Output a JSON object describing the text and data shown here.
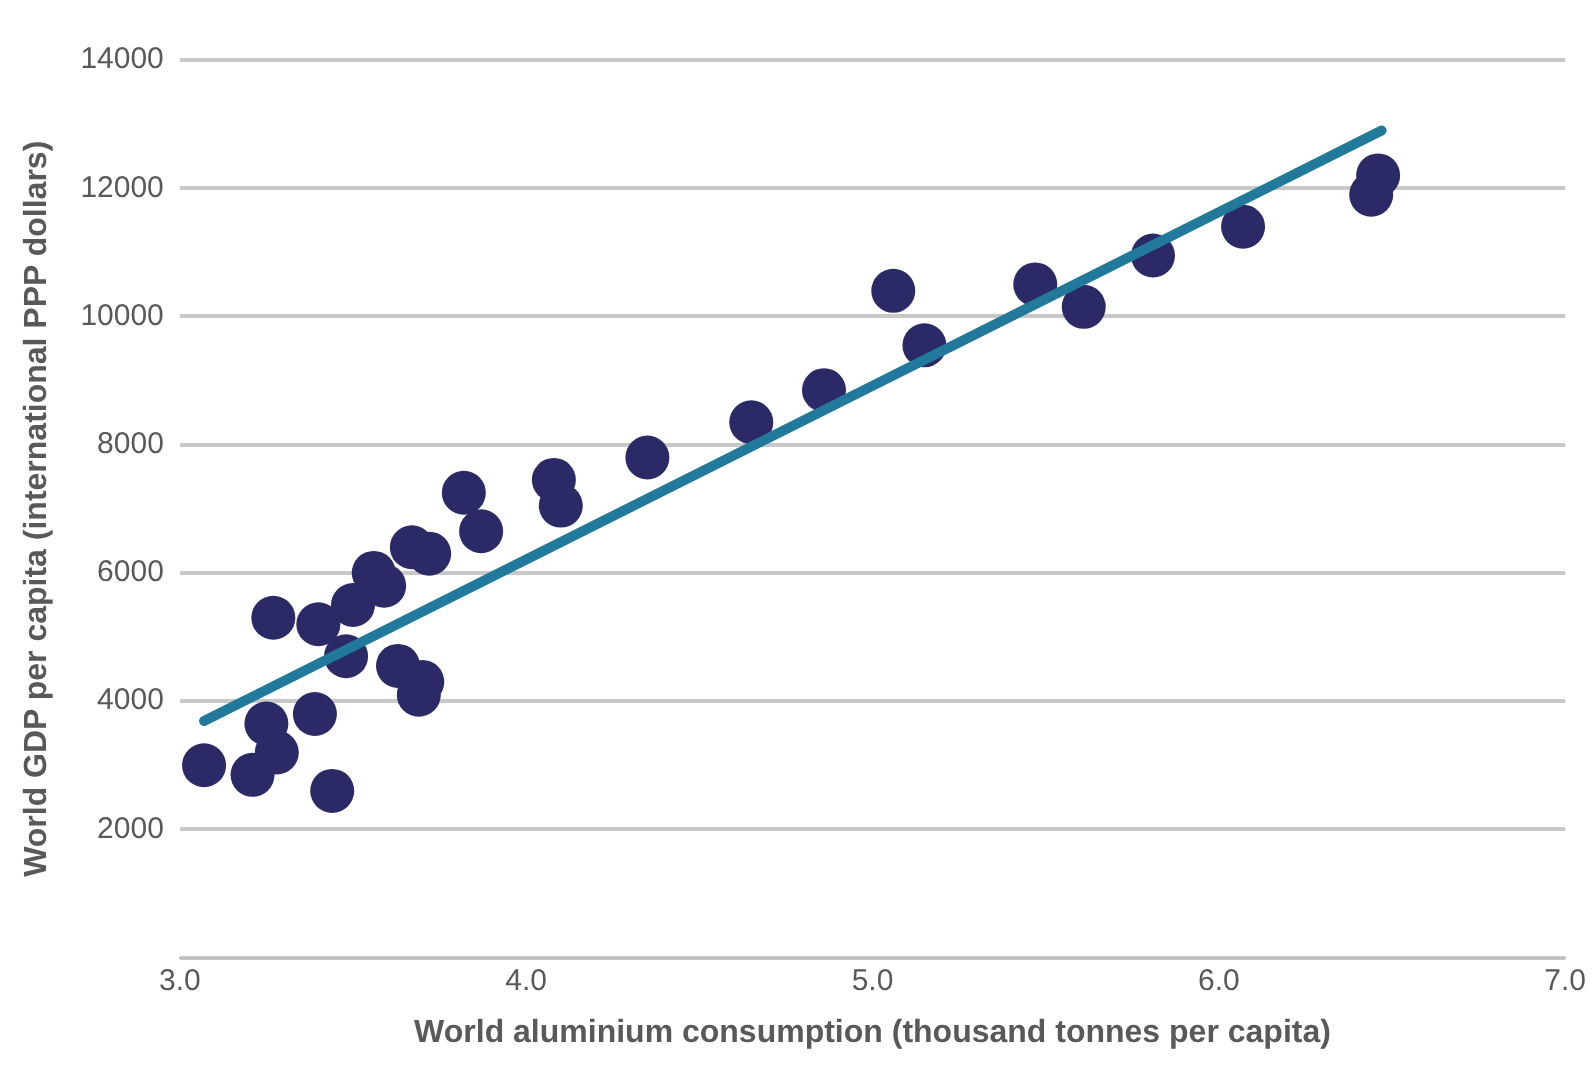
{
  "chart_data": {
    "type": "scatter",
    "xlabel": "World aluminium consumption (thousand tonnes per capita)",
    "ylabel": "World GDP per capita (international PPP dollars)",
    "xlim": [
      3,
      7
    ],
    "xticks": [
      {
        "value": 3,
        "label": "3.0"
      },
      {
        "value": 4,
        "label": "4.0"
      },
      {
        "value": 5,
        "label": "5.0"
      },
      {
        "value": 6,
        "label": "6.0"
      },
      {
        "value": 7,
        "label": "7.0"
      }
    ],
    "ylim": [
      0,
      14000
    ],
    "yticks": [
      {
        "value": 0,
        "label": null
      },
      2000,
      4000,
      6000,
      8000,
      10000,
      12000,
      14000
    ],
    "grid": "y",
    "legend": false,
    "series": [
      {
        "marker": "circle",
        "color": "#2b2a66",
        "x": [
          3.07,
          3.21,
          3.28,
          3.25,
          3.27,
          3.39,
          3.4,
          3.44,
          3.48,
          3.5,
          3.56,
          3.59,
          3.63,
          3.69,
          3.7,
          3.67,
          3.72,
          3.82,
          3.87,
          4.08,
          4.1,
          4.35,
          4.65,
          4.86,
          5.06,
          5.15,
          5.47,
          5.61,
          5.81,
          6.07,
          6.44,
          6.46
        ],
        "values": [
          3000,
          2850,
          3200,
          3650,
          5300,
          3800,
          5200,
          2600,
          4700,
          5500,
          6000,
          5800,
          4550,
          4100,
          4300,
          6400,
          6300,
          7250,
          6650,
          7450,
          7050,
          7800,
          8350,
          8850,
          10400,
          9550,
          10500,
          10150,
          10950,
          11400,
          11900,
          12200
        ]
      },
      {
        "type": "line",
        "marker": "none",
        "color": "#217a9c",
        "x": [
          3.07,
          6.47
        ],
        "values": [
          3690,
          12900
        ]
      }
    ]
  }
}
